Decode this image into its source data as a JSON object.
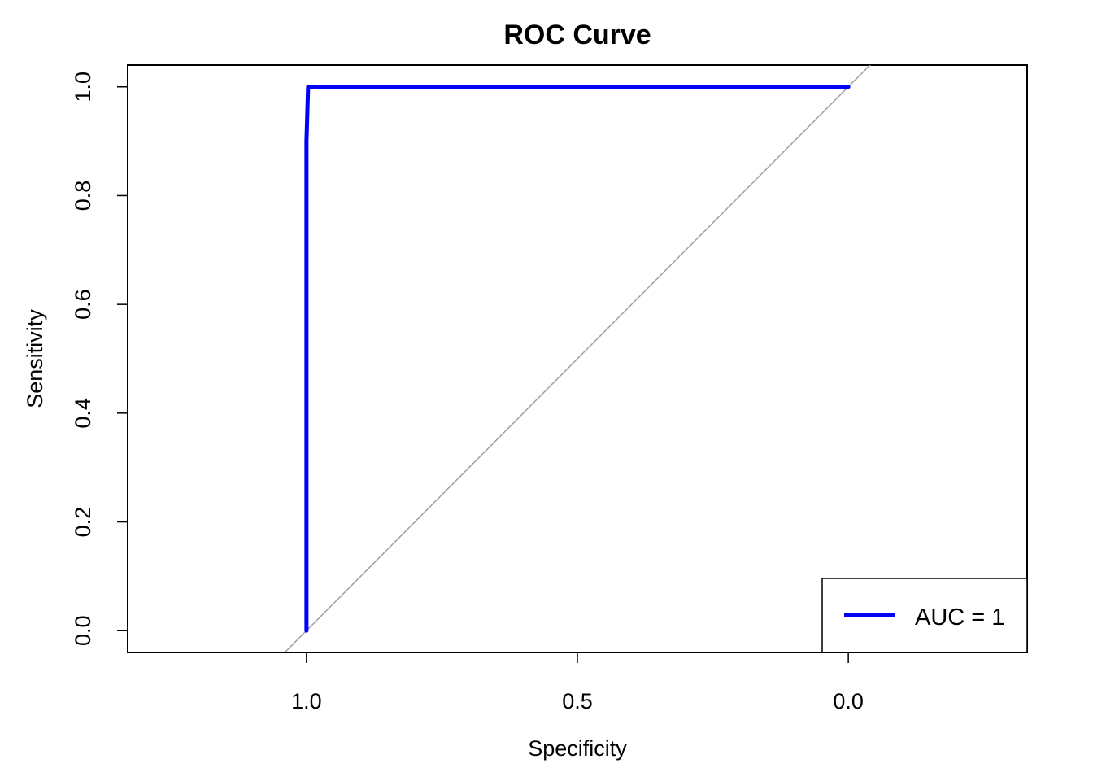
{
  "chart_data": {
    "type": "line",
    "title": "ROC Curve",
    "xlabel": "Specificity",
    "ylabel": "Sensitivity",
    "x_reversed": true,
    "xlim": [
      1.33,
      -0.33
    ],
    "ylim": [
      -0.04,
      1.04
    ],
    "x_ticks": [
      1.0,
      0.5,
      0.0
    ],
    "x_tick_labels": [
      "1.0",
      "0.5",
      "0.0"
    ],
    "y_ticks": [
      0.0,
      0.2,
      0.4,
      0.6,
      0.8,
      1.0
    ],
    "y_tick_labels": [
      "0.0",
      "0.2",
      "0.4",
      "0.6",
      "0.8",
      "1.0"
    ],
    "grid": false,
    "legend_position": "bottom-right",
    "series": [
      {
        "name": "AUC = 1",
        "color": "#0000ff",
        "x": [
          1.0,
          1.0,
          0.997,
          0.0
        ],
        "y": [
          0.0,
          0.9,
          1.0,
          1.0
        ]
      }
    ],
    "reference_line": {
      "color": "#a0a0a0",
      "x": [
        1.0,
        0.0
      ],
      "y": [
        0.0,
        1.0
      ]
    }
  }
}
